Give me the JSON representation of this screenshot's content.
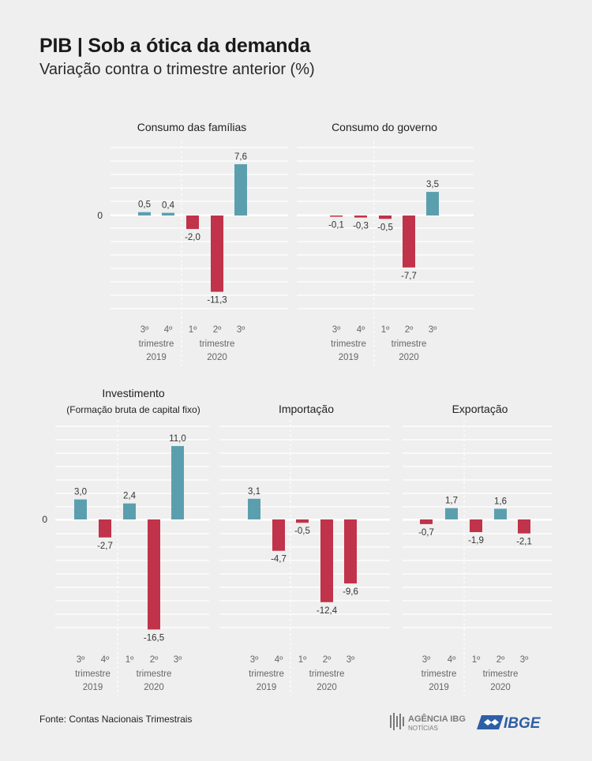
{
  "title": "PIB | Sob a ótica da demanda",
  "subtitle": "Variação contra o trimestre anterior (%)",
  "source": "Fonte: Contas Nacionais Trimestrais",
  "logos": {
    "agencia": "AGÊNCIA IBGE",
    "agencia_sub": "NOTÍCIAS",
    "ibge": "IBGE"
  },
  "colors": {
    "positive": "#5b9faf",
    "negative": "#c0334a",
    "grid": "#ffffff",
    "background": "#efefef"
  },
  "period_labels": {
    "quarters": [
      "3º",
      "4º",
      "1º",
      "2º",
      "3º"
    ],
    "trimestre": "trimestre",
    "years": [
      "2019",
      "2020"
    ]
  },
  "zero_label": "0",
  "chart_data": [
    {
      "type": "bar",
      "title": "Consumo das famílias",
      "subtitle": "",
      "categories": [
        "3º trimestre 2019",
        "4º trimestre 2019",
        "1º trimestre 2020",
        "2º trimestre 2020",
        "3º trimestre 2020"
      ],
      "values": [
        0.5,
        0.4,
        -2.0,
        -11.3,
        7.6
      ],
      "value_labels": [
        "0,5",
        "0,4",
        "-2,0",
        "-11,3",
        "7,6"
      ]
    },
    {
      "type": "bar",
      "title": "Consumo do governo",
      "subtitle": "",
      "categories": [
        "3º trimestre 2019",
        "4º trimestre 2019",
        "1º trimestre 2020",
        "2º trimestre 2020",
        "3º trimestre 2020"
      ],
      "values": [
        -0.1,
        -0.3,
        -0.5,
        -7.7,
        3.5
      ],
      "value_labels": [
        "-0,1",
        "-0,3",
        "-0,5",
        "-7,7",
        "3,5"
      ]
    },
    {
      "type": "bar",
      "title": "Investimento",
      "subtitle": "(Formação bruta de capital fixo)",
      "categories": [
        "3º trimestre 2019",
        "4º trimestre 2019",
        "1º trimestre 2020",
        "2º trimestre 2020",
        "3º trimestre 2020"
      ],
      "values": [
        3.0,
        -2.7,
        2.4,
        -16.5,
        11.0
      ],
      "value_labels": [
        "3,0",
        "-2,7",
        "2,4",
        "-16,5",
        "11,0"
      ]
    },
    {
      "type": "bar",
      "title": "Importação",
      "subtitle": "",
      "categories": [
        "3º trimestre 2019",
        "4º trimestre 2019",
        "1º trimestre 2020",
        "2º trimestre 2020",
        "3º trimestre 2020"
      ],
      "values": [
        3.1,
        -4.7,
        -0.5,
        -12.4,
        -9.6
      ],
      "value_labels": [
        "3,1",
        "-4,7",
        "-0,5",
        "-12,4",
        "-9,6"
      ]
    },
    {
      "type": "bar",
      "title": "Exportação",
      "subtitle": "",
      "categories": [
        "3º trimestre 2019",
        "4º trimestre 2019",
        "1º trimestre 2020",
        "2º trimestre 2020",
        "3º trimestre 2020"
      ],
      "values": [
        -0.7,
        1.7,
        -1.9,
        1.6,
        -2.1
      ],
      "value_labels": [
        "-0,7",
        "1,7",
        "-1,9",
        "1,6",
        "-2,1"
      ]
    }
  ]
}
